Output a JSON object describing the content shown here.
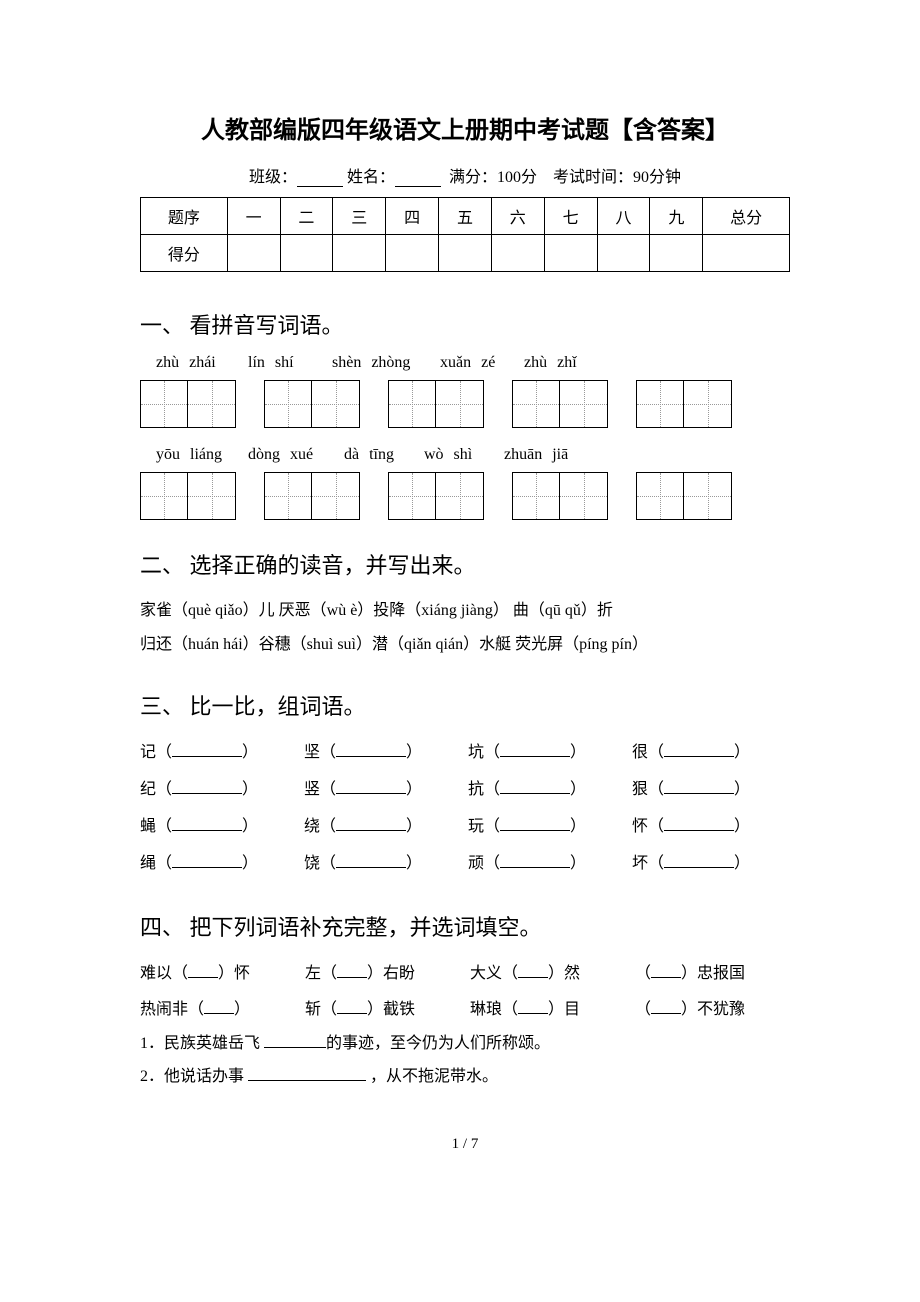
{
  "title": "人教部编版四年级语文上册期中考试题【含答案】",
  "meta": {
    "class_label": "班级：",
    "name_label": "姓名：",
    "fullmark_label": "满分：100分",
    "time_label": "考试时间：90分钟"
  },
  "score_table": {
    "headers": [
      "题序",
      "一",
      "二",
      "三",
      "四",
      "五",
      "六",
      "七",
      "八",
      "九",
      "总分"
    ],
    "row_label": "得分"
  },
  "section1": {
    "heading": "一、 看拼音写词语。",
    "row1": [
      "zhù zhái",
      "lín shí",
      "shèn zhòng",
      "xuǎn zé",
      "zhù zhǐ"
    ],
    "row2": [
      "yōu liáng",
      "dòng xué",
      "dà tīng",
      "wò shì",
      "zhuān jiā"
    ],
    "p_widths_1": [
      92,
      84,
      108,
      84,
      70
    ],
    "p_widths_2": [
      92,
      96,
      80,
      80,
      92
    ]
  },
  "section2": {
    "heading": "二、 选择正确的读音，并写出来。",
    "line1_parts": [
      "家雀（què qiǎo）儿 厌恶（wù è）投降（xiáng jiàng） 曲（qū qǔ）折"
    ],
    "line2_parts": [
      "归还（huán hái）谷穗（shuì suì）潜（qiǎn qián）水艇 荧光屏（píng pín）"
    ]
  },
  "section3": {
    "heading": "三、 比一比，组词语。",
    "rows": [
      [
        "记",
        "坚",
        "坑",
        "很"
      ],
      [
        "纪",
        "竖",
        "抗",
        "狠"
      ],
      [
        "蝇",
        "绕",
        "玩",
        "怀"
      ],
      [
        "绳",
        "饶",
        "顽",
        "坏"
      ]
    ]
  },
  "section4": {
    "heading": "四、 把下列词语补充完整，并选词填空。",
    "items": [
      {
        "pre": "难以（",
        "post": "）怀"
      },
      {
        "pre": "左（",
        "post": "）右盼"
      },
      {
        "pre": "大义（",
        "post": "）然"
      },
      {
        "pre": "（",
        "post": "）忠报国"
      },
      {
        "pre": "热闹非（",
        "post": "）"
      },
      {
        "pre": "斩（",
        "post": "）截铁"
      },
      {
        "pre": "琳琅（",
        "post": "）目"
      },
      {
        "pre": "（",
        "post": "）不犹豫"
      }
    ],
    "q1_pre": "1．民族英雄岳飞 ",
    "q1_post": "的事迹，至今仍为人们所称颂。",
    "q2_pre": "2．他说话办事 ",
    "q2_post": " ，从不拖泥带水。"
  },
  "page": "1 / 7"
}
